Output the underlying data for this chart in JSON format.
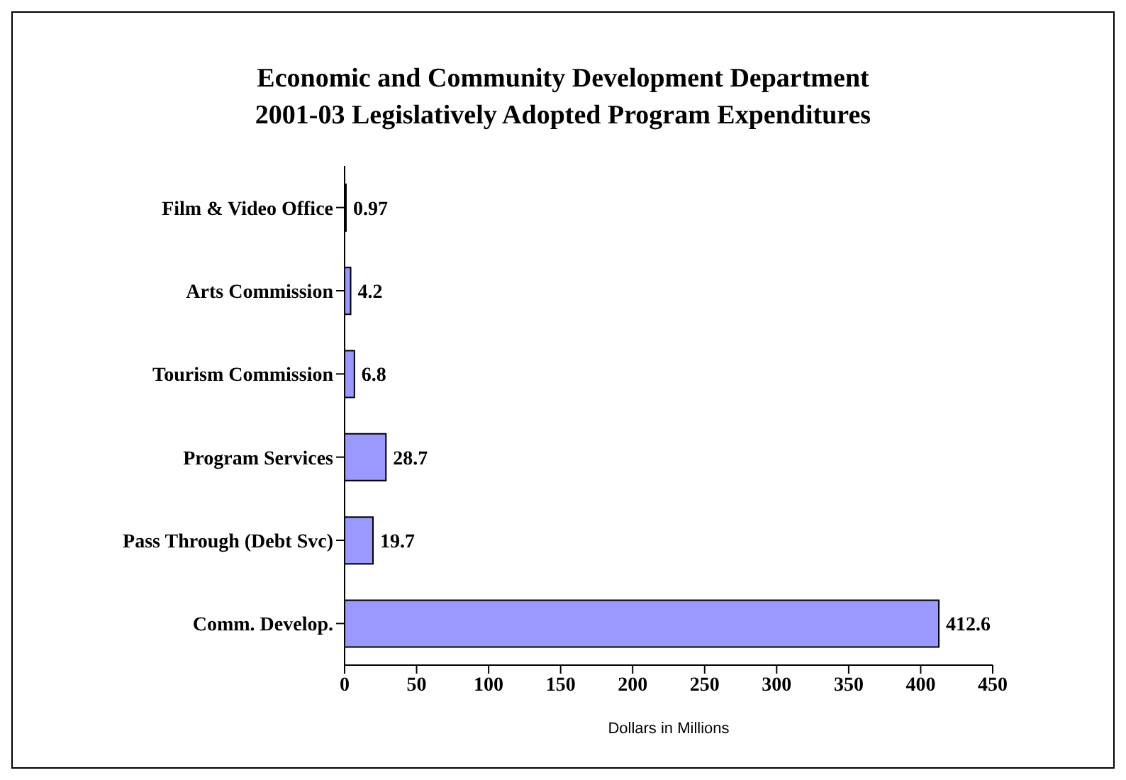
{
  "chart_data": {
    "type": "bar",
    "orientation": "horizontal",
    "title": "Economic and Community Development Department\n2001-03 Legislatively Adopted Program Expenditures",
    "xlabel": "Dollars in Millions",
    "categories": [
      "Film & Video Office",
      "Arts Commission",
      "Tourism Commission",
      "Program Services",
      "Pass Through (Debt Svc)",
      "Comm. Develop."
    ],
    "values": [
      0.97,
      4.2,
      6.8,
      28.7,
      19.7,
      412.6
    ],
    "color": "#9999ff",
    "data_labels": true,
    "xlim": [
      0,
      450
    ],
    "xticks": [
      0,
      50,
      100,
      150,
      200,
      250,
      300,
      350,
      400,
      450
    ]
  }
}
